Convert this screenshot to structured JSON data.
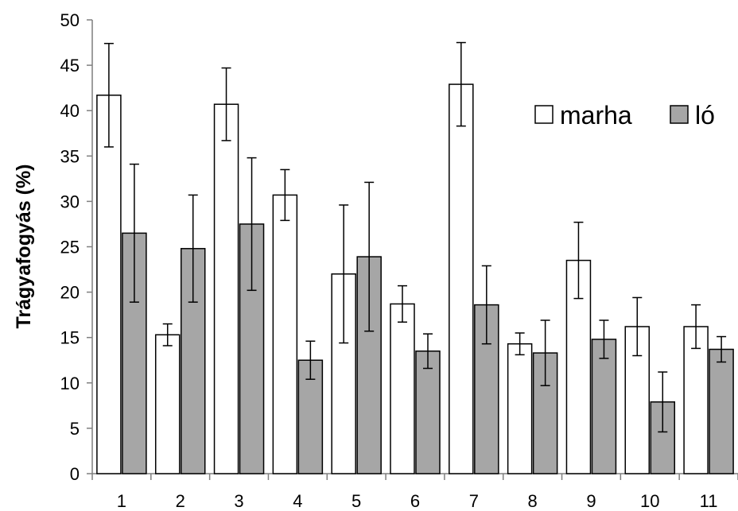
{
  "chart_data": {
    "type": "bar",
    "title": "",
    "xlabel": "",
    "ylabel": "Trágyafogyás (%)",
    "ylim": [
      0,
      50
    ],
    "yticks": [
      0,
      5,
      10,
      15,
      20,
      25,
      30,
      35,
      40,
      45,
      50
    ],
    "categories": [
      "1",
      "2",
      "3",
      "4",
      "5",
      "6",
      "7",
      "8",
      "9",
      "10",
      "11"
    ],
    "grid": false,
    "legend_position": "top-right",
    "series": [
      {
        "name": "marha",
        "color": "#ffffff",
        "values": [
          41.7,
          15.3,
          40.7,
          30.7,
          22.0,
          18.7,
          42.9,
          14.3,
          23.5,
          16.2,
          16.2
        ],
        "error": [
          5.7,
          1.2,
          4.0,
          2.8,
          7.6,
          2.0,
          4.6,
          1.2,
          4.2,
          3.2,
          2.4
        ]
      },
      {
        "name": "ló",
        "color": "#a6a6a6",
        "values": [
          26.5,
          24.8,
          27.5,
          12.5,
          23.9,
          13.5,
          18.6,
          13.3,
          14.8,
          7.9,
          13.7
        ],
        "error": [
          7.6,
          5.9,
          7.3,
          2.1,
          8.2,
          1.9,
          4.3,
          3.6,
          2.1,
          3.3,
          1.4
        ]
      }
    ]
  }
}
